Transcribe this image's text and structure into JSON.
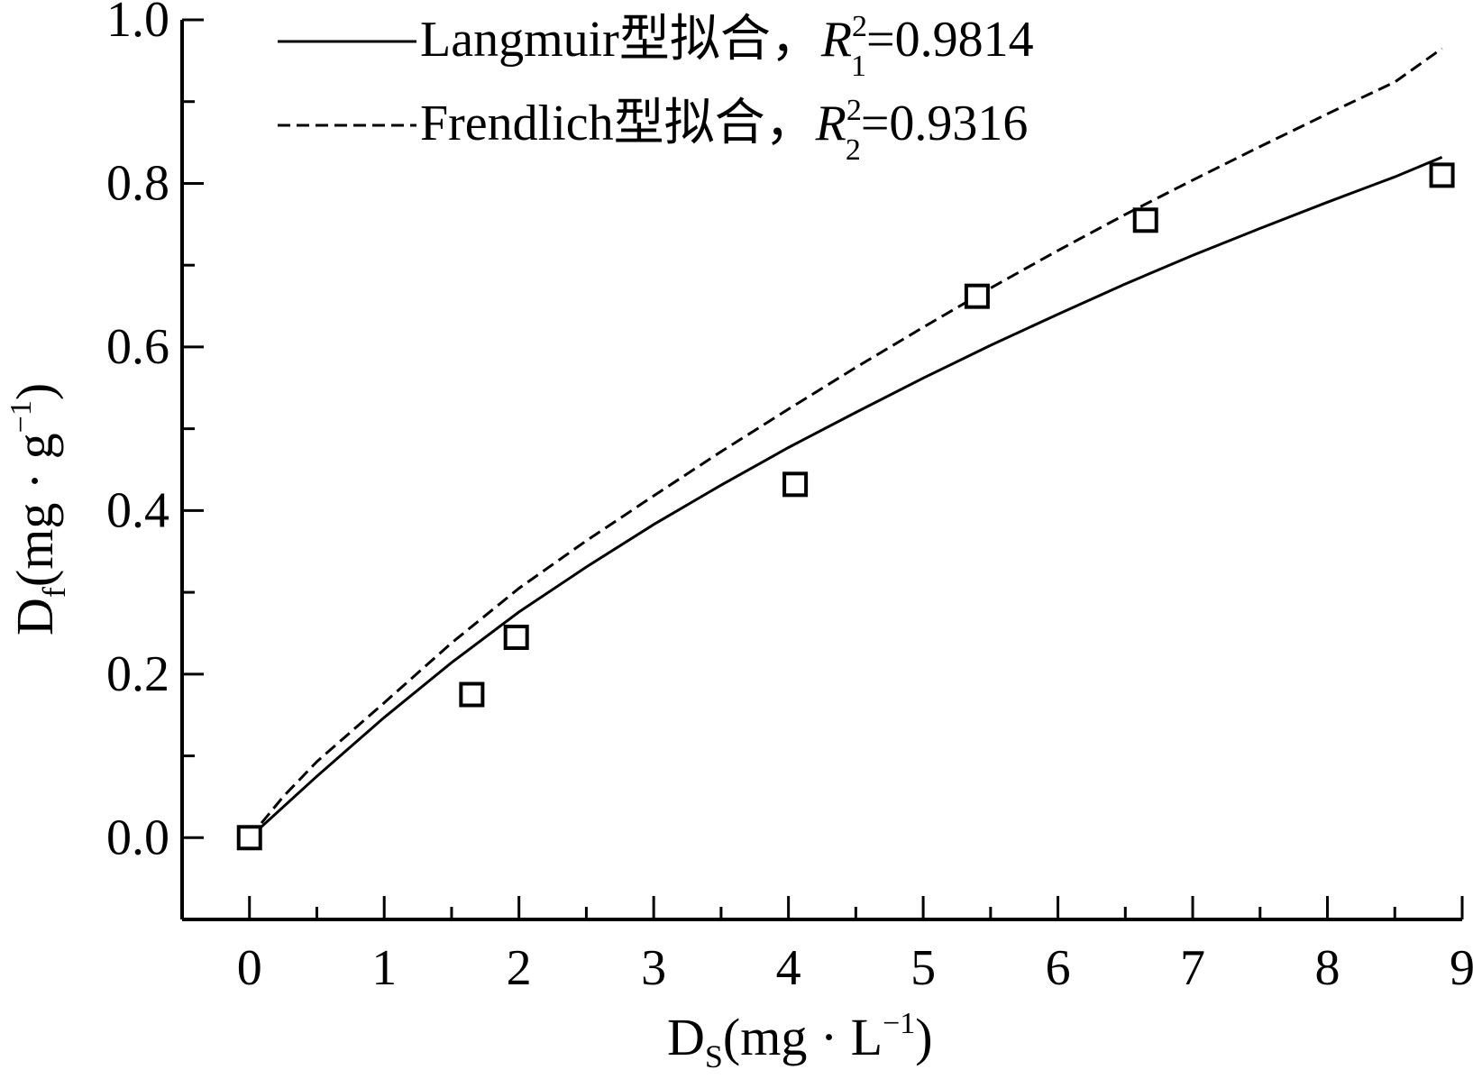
{
  "chart_data": {
    "type": "scatter",
    "xlabel": {
      "main": "D",
      "sub": "S",
      "unit": "(mg · L",
      "sup": "−1",
      "close": ")"
    },
    "ylabel": {
      "main": "D",
      "sub": "f",
      "unit": "(mg · g",
      "sup": "−1",
      "close": ")"
    },
    "xlim": [
      -0.5,
      9
    ],
    "ylim": [
      -0.1,
      1.0
    ],
    "xticks": [
      "0",
      "1",
      "2",
      "3",
      "4",
      "5",
      "6",
      "7",
      "8",
      "9"
    ],
    "yticks": [
      "0.0",
      "0.2",
      "0.4",
      "0.6",
      "0.8",
      "1.0"
    ],
    "points": [
      {
        "x": 0.0,
        "y": 0.0
      },
      {
        "x": 1.65,
        "y": 0.175
      },
      {
        "x": 1.98,
        "y": 0.245
      },
      {
        "x": 4.05,
        "y": 0.432
      },
      {
        "x": 5.4,
        "y": 0.662
      },
      {
        "x": 6.65,
        "y": 0.755
      },
      {
        "x": 8.85,
        "y": 0.81
      }
    ],
    "series": [
      {
        "name": "Langmuir型拟合，",
        "r2_label": "R",
        "r2_sup": "2",
        "r2_sub": "1",
        "r2_value": "=0.9814",
        "style": "solid",
        "x": [
          0,
          0.5,
          1,
          1.5,
          2,
          2.5,
          3,
          3.5,
          4,
          4.5,
          5,
          5.5,
          6,
          6.5,
          7,
          7.5,
          8,
          8.5,
          8.85
        ],
        "y": [
          0,
          0.075,
          0.147,
          0.214,
          0.276,
          0.331,
          0.383,
          0.431,
          0.477,
          0.52,
          0.562,
          0.602,
          0.64,
          0.677,
          0.712,
          0.745,
          0.777,
          0.808,
          0.832
        ]
      },
      {
        "name": "Frendlich型拟合，",
        "r2_label": "R",
        "r2_sup": "2",
        "r2_sub": "2",
        "r2_value": "=0.9316",
        "style": "dashed",
        "x": [
          0,
          0.25,
          0.5,
          1,
          1.5,
          2,
          2.5,
          3,
          3.5,
          4,
          4.5,
          5,
          5.5,
          6,
          6.5,
          7,
          7.5,
          8,
          8.5,
          8.85
        ],
        "y": [
          0,
          0.05,
          0.093,
          0.165,
          0.238,
          0.305,
          0.363,
          0.418,
          0.472,
          0.524,
          0.575,
          0.624,
          0.672,
          0.718,
          0.762,
          0.804,
          0.845,
          0.885,
          0.924,
          0.965
        ]
      }
    ],
    "legend_position": "top-left",
    "grid": false
  }
}
